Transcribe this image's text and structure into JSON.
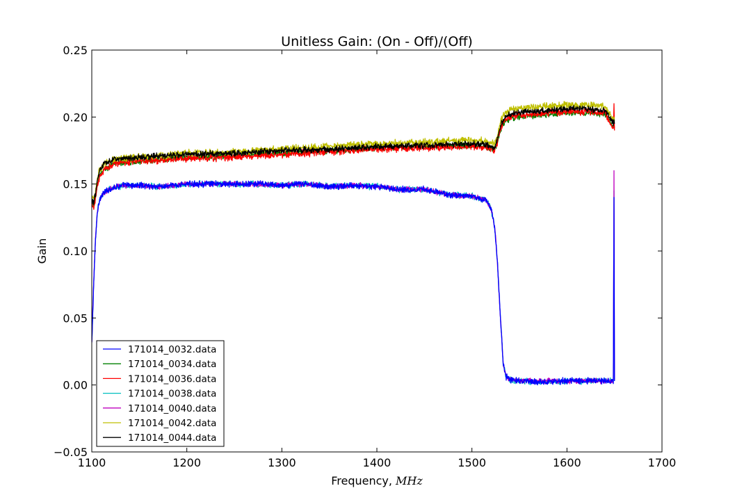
{
  "chart_data": {
    "type": "line",
    "title": "Unitless Gain: (On - Off)/(Off)",
    "xlabel": "Frequency, ",
    "xlabel_unit": "MHz",
    "ylabel": "Gain",
    "xlim": [
      1100,
      1700
    ],
    "ylim": [
      -0.05,
      0.25
    ],
    "xticks": [
      1100,
      1200,
      1300,
      1400,
      1500,
      1600,
      1700
    ],
    "xtick_labels": [
      "1100",
      "1200",
      "1300",
      "1400",
      "1500",
      "1600",
      "1700"
    ],
    "yticks": [
      -0.05,
      0.0,
      0.05,
      0.1,
      0.15,
      0.2,
      0.25
    ],
    "ytick_labels": [
      "−0.05",
      "0.00",
      "0.05",
      "0.10",
      "0.15",
      "0.20",
      "0.25"
    ],
    "grid": false,
    "legend_position": "lower-left",
    "series": [
      {
        "name": "171014_0032.data",
        "color": "#0000ff",
        "noise": 0.0014,
        "x": [
          1100,
          1102,
          1104,
          1106,
          1108,
          1112,
          1118,
          1125,
          1135,
          1150,
          1175,
          1200,
          1225,
          1250,
          1275,
          1300,
          1325,
          1350,
          1375,
          1400,
          1425,
          1450,
          1475,
          1500,
          1515,
          1520,
          1524,
          1527,
          1530,
          1533,
          1536,
          1540,
          1550,
          1570,
          1600,
          1630,
          1649,
          1649.5,
          1650
        ],
        "y": [
          0.03,
          0.075,
          0.11,
          0.13,
          0.138,
          0.143,
          0.146,
          0.148,
          0.149,
          0.149,
          0.148,
          0.15,
          0.15,
          0.15,
          0.15,
          0.149,
          0.15,
          0.148,
          0.149,
          0.148,
          0.146,
          0.146,
          0.142,
          0.141,
          0.138,
          0.132,
          0.118,
          0.09,
          0.05,
          0.015,
          0.006,
          0.004,
          0.003,
          0.002,
          0.003,
          0.003,
          0.003,
          0.14,
          0.003
        ]
      },
      {
        "name": "171014_0034.data",
        "color": "#008000",
        "noise": 0.0014,
        "x": [
          1100,
          1102,
          1104,
          1106,
          1108,
          1112,
          1118,
          1125,
          1150,
          1175,
          1200,
          1250,
          1300,
          1350,
          1400,
          1450,
          1500,
          1515,
          1524,
          1527,
          1530,
          1533,
          1537,
          1545,
          1560,
          1580,
          1600,
          1620,
          1640,
          1646,
          1649,
          1649.5,
          1650
        ],
        "y": [
          0.135,
          0.133,
          0.14,
          0.15,
          0.155,
          0.16,
          0.163,
          0.166,
          0.167,
          0.168,
          0.17,
          0.171,
          0.173,
          0.175,
          0.177,
          0.178,
          0.179,
          0.178,
          0.176,
          0.182,
          0.19,
          0.195,
          0.198,
          0.2,
          0.201,
          0.202,
          0.203,
          0.203,
          0.202,
          0.196,
          0.192,
          0.195,
          0.192
        ]
      },
      {
        "name": "171014_0036.data",
        "color": "#ff0000",
        "noise": 0.0016,
        "x": [
          1100,
          1102,
          1104,
          1106,
          1108,
          1112,
          1118,
          1125,
          1150,
          1175,
          1200,
          1250,
          1300,
          1350,
          1400,
          1450,
          1500,
          1515,
          1524,
          1527,
          1530,
          1533,
          1537,
          1545,
          1560,
          1580,
          1600,
          1620,
          1640,
          1646,
          1649,
          1649.5,
          1650
        ],
        "y": [
          0.134,
          0.132,
          0.139,
          0.149,
          0.155,
          0.16,
          0.163,
          0.166,
          0.167,
          0.168,
          0.169,
          0.17,
          0.172,
          0.174,
          0.176,
          0.177,
          0.178,
          0.177,
          0.175,
          0.182,
          0.191,
          0.196,
          0.199,
          0.201,
          0.202,
          0.203,
          0.204,
          0.204,
          0.203,
          0.196,
          0.19,
          0.21,
          0.19
        ]
      },
      {
        "name": "171014_0038.data",
        "color": "#00bfbf",
        "noise": 0.0014,
        "x": [
          1100,
          1102,
          1104,
          1106,
          1108,
          1112,
          1118,
          1125,
          1135,
          1150,
          1175,
          1200,
          1225,
          1250,
          1275,
          1300,
          1325,
          1350,
          1375,
          1400,
          1425,
          1450,
          1475,
          1500,
          1515,
          1520,
          1524,
          1527,
          1530,
          1533,
          1536,
          1540,
          1550,
          1570,
          1600,
          1630,
          1649,
          1649.5,
          1650
        ],
        "y": [
          0.031,
          0.076,
          0.11,
          0.13,
          0.138,
          0.143,
          0.146,
          0.148,
          0.149,
          0.149,
          0.148,
          0.15,
          0.15,
          0.15,
          0.15,
          0.149,
          0.15,
          0.148,
          0.149,
          0.148,
          0.146,
          0.146,
          0.142,
          0.141,
          0.138,
          0.132,
          0.118,
          0.09,
          0.05,
          0.015,
          0.006,
          0.004,
          0.003,
          0.002,
          0.003,
          0.003,
          0.003,
          0.145,
          0.003
        ]
      },
      {
        "name": "171014_0040.data",
        "color": "#bf00bf",
        "noise": 0.0012,
        "x": [
          1100,
          1102,
          1104,
          1106,
          1108,
          1112,
          1118,
          1125,
          1135,
          1150,
          1175,
          1200,
          1225,
          1250,
          1275,
          1300,
          1325,
          1350,
          1375,
          1400,
          1425,
          1450,
          1475,
          1500,
          1515,
          1520,
          1524,
          1527,
          1530,
          1533,
          1536,
          1540,
          1550,
          1570,
          1600,
          1630,
          1649,
          1649.5,
          1650
        ],
        "y": [
          0.032,
          0.076,
          0.111,
          0.13,
          0.138,
          0.143,
          0.146,
          0.148,
          0.149,
          0.149,
          0.148,
          0.15,
          0.15,
          0.15,
          0.15,
          0.149,
          0.15,
          0.148,
          0.149,
          0.148,
          0.146,
          0.146,
          0.142,
          0.141,
          0.138,
          0.132,
          0.118,
          0.09,
          0.05,
          0.015,
          0.006,
          0.004,
          0.003,
          0.003,
          0.003,
          0.003,
          0.003,
          0.16,
          0.004
        ]
      },
      {
        "name": "171014_0042.data",
        "color": "#bfbf00",
        "noise": 0.0016,
        "x": [
          1100,
          1102,
          1104,
          1106,
          1108,
          1112,
          1118,
          1125,
          1150,
          1175,
          1200,
          1250,
          1300,
          1350,
          1400,
          1450,
          1500,
          1515,
          1524,
          1527,
          1530,
          1533,
          1537,
          1545,
          1560,
          1580,
          1600,
          1620,
          1640,
          1646,
          1649,
          1649.5,
          1650
        ],
        "y": [
          0.14,
          0.138,
          0.145,
          0.155,
          0.16,
          0.164,
          0.167,
          0.169,
          0.17,
          0.171,
          0.173,
          0.174,
          0.176,
          0.178,
          0.18,
          0.181,
          0.183,
          0.182,
          0.18,
          0.186,
          0.196,
          0.201,
          0.204,
          0.206,
          0.207,
          0.208,
          0.209,
          0.209,
          0.208,
          0.202,
          0.197,
          0.2,
          0.197
        ]
      },
      {
        "name": "171014_0044.data",
        "color": "#000000",
        "noise": 0.0014,
        "x": [
          1100,
          1102,
          1104,
          1106,
          1108,
          1112,
          1118,
          1125,
          1150,
          1175,
          1200,
          1250,
          1300,
          1350,
          1400,
          1450,
          1500,
          1515,
          1524,
          1527,
          1530,
          1533,
          1537,
          1545,
          1560,
          1580,
          1600,
          1620,
          1640,
          1646,
          1649,
          1649.5,
          1650
        ],
        "y": [
          0.138,
          0.136,
          0.143,
          0.153,
          0.159,
          0.164,
          0.167,
          0.169,
          0.17,
          0.171,
          0.172,
          0.173,
          0.175,
          0.176,
          0.178,
          0.179,
          0.18,
          0.179,
          0.177,
          0.184,
          0.193,
          0.198,
          0.201,
          0.203,
          0.204,
          0.205,
          0.206,
          0.206,
          0.205,
          0.199,
          0.195,
          0.198,
          0.195
        ]
      }
    ]
  }
}
